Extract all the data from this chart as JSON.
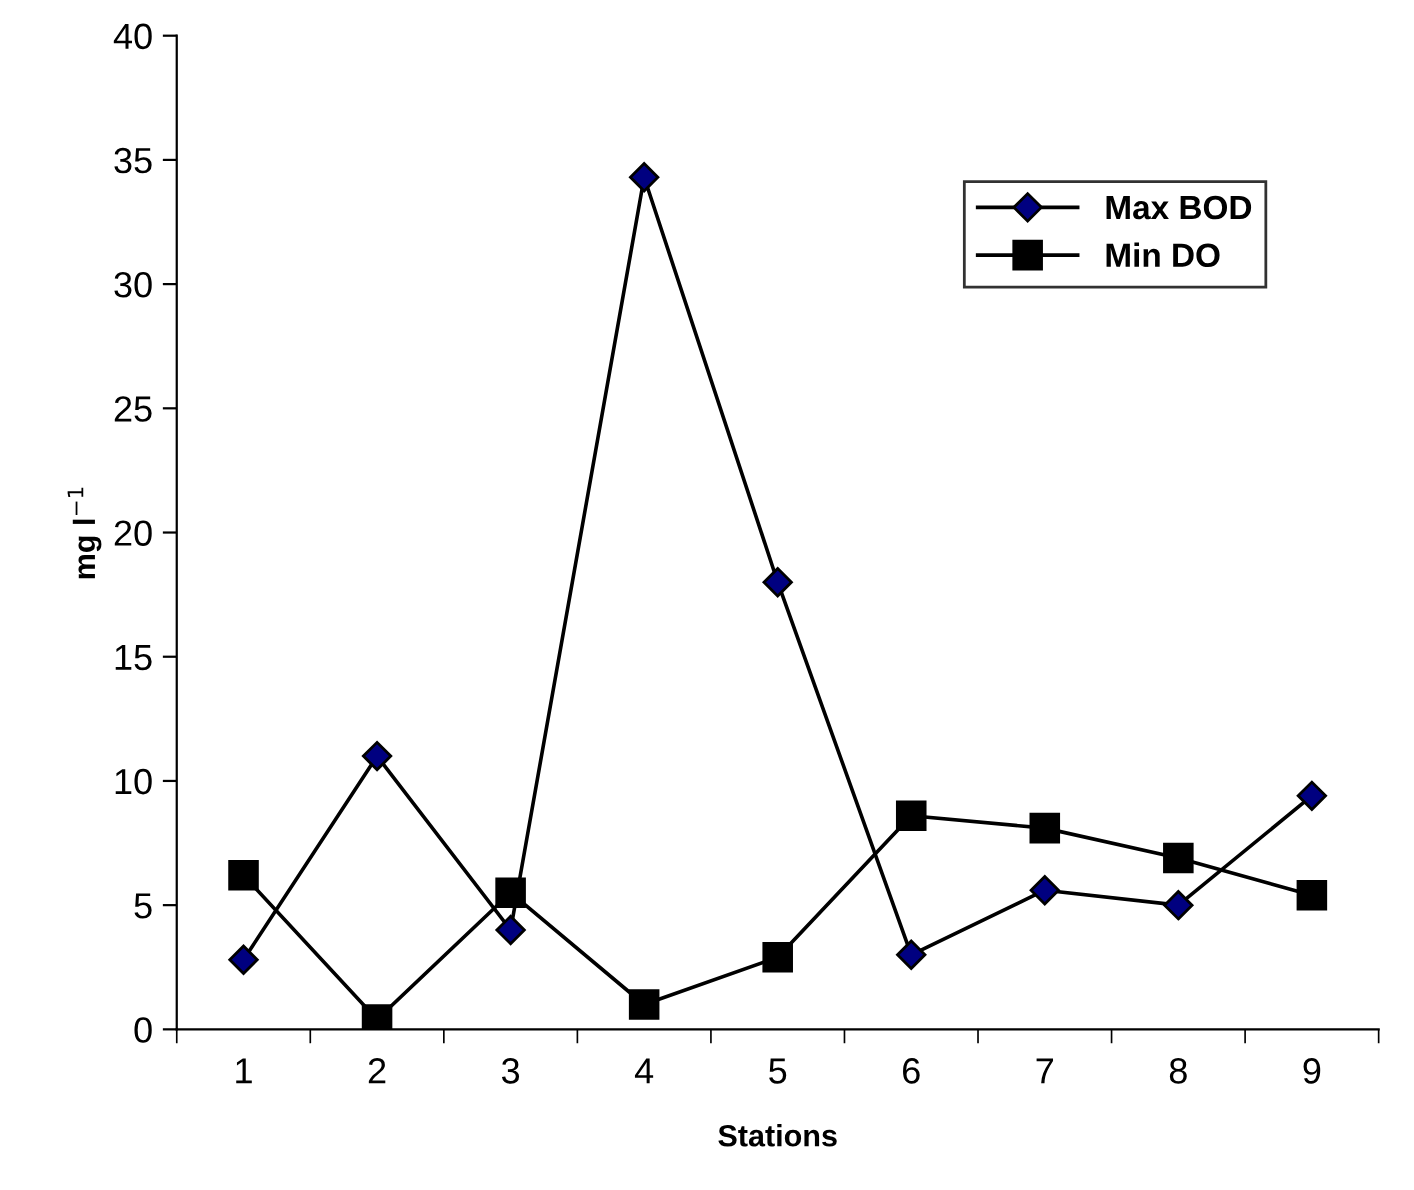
{
  "chart_data": {
    "type": "line",
    "xlabel": "Stations",
    "ylabel": "mg l$^{−1}$",
    "categories": [
      "1",
      "2",
      "3",
      "4",
      "5",
      "6",
      "7",
      "8",
      "9"
    ],
    "series": [
      {
        "name": "Max BOD",
        "color": "#000080",
        "marker": "diamond",
        "values": [
          2.8,
          11,
          4,
          34.3,
          18,
          3,
          5.6,
          5,
          9.4
        ]
      },
      {
        "name": "Min DO",
        "color": "#000000",
        "marker": "square",
        "values": [
          6.2,
          0.4,
          5.5,
          1,
          2.9,
          8.6,
          8.1,
          6.9,
          5.4
        ]
      }
    ],
    "ylim": [
      0,
      40
    ],
    "yticks": [
      0,
      5,
      10,
      15,
      20,
      25,
      30,
      35,
      40
    ],
    "grid": false,
    "legend": "top right",
    "line_style": "solid"
  }
}
